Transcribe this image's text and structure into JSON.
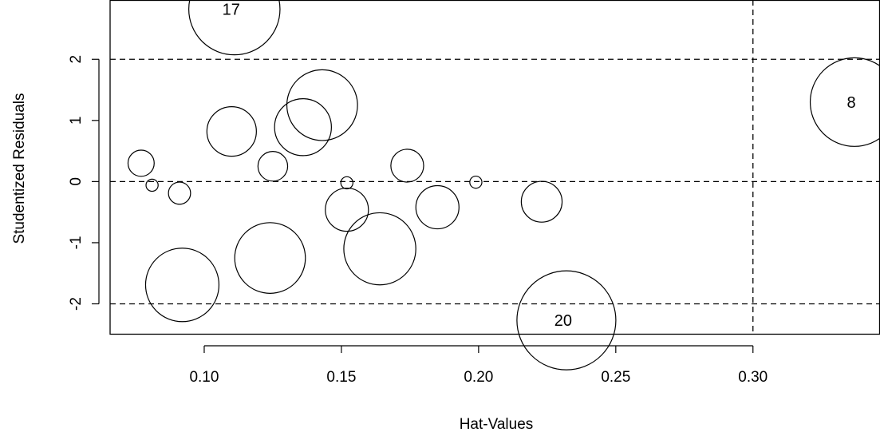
{
  "chart_data": {
    "type": "scatter",
    "title": "",
    "xlabel": "Hat-Values",
    "ylabel": "Studentized Residuals",
    "xlim": [
      0.0657,
      0.3463
    ],
    "ylim": [
      -2.49,
      2.97
    ],
    "x_ticks": [
      0.1,
      0.15,
      0.2,
      0.25,
      0.3
    ],
    "x_tick_labels": [
      "0.10",
      "0.15",
      "0.20",
      "0.25",
      "0.30"
    ],
    "y_ticks": [
      -2,
      -1,
      0,
      1,
      2
    ],
    "y_tick_labels": [
      "-2",
      "-1",
      "0",
      "1",
      "2"
    ],
    "reference_lines": {
      "horizontal": [
        -2,
        0,
        2
      ],
      "vertical": [
        0.3
      ],
      "style": "dashed"
    },
    "bubble_size_meaning": "Cook's distance (relative)",
    "points": [
      {
        "x": 0.111,
        "y": 2.82,
        "size": 0.85,
        "label": "17"
      },
      {
        "x": 0.337,
        "y": 1.3,
        "size": 0.8,
        "label": "8"
      },
      {
        "x": 0.232,
        "y": -2.27,
        "size": 1.0,
        "label": "20"
      },
      {
        "x": 0.143,
        "y": 1.25,
        "size": 0.51
      },
      {
        "x": 0.11,
        "y": 0.82,
        "size": 0.25
      },
      {
        "x": 0.136,
        "y": 0.89,
        "size": 0.33
      },
      {
        "x": 0.077,
        "y": 0.3,
        "size": 0.07
      },
      {
        "x": 0.125,
        "y": 0.25,
        "size": 0.09
      },
      {
        "x": 0.174,
        "y": 0.26,
        "size": 0.11
      },
      {
        "x": 0.091,
        "y": -0.19,
        "size": 0.05
      },
      {
        "x": 0.081,
        "y": -0.06,
        "size": 0.015
      },
      {
        "x": 0.152,
        "y": -0.02,
        "size": 0.015
      },
      {
        "x": 0.199,
        "y": -0.01,
        "size": 0.015
      },
      {
        "x": 0.152,
        "y": -0.46,
        "size": 0.19
      },
      {
        "x": 0.185,
        "y": -0.42,
        "size": 0.19
      },
      {
        "x": 0.223,
        "y": -0.33,
        "size": 0.17
      },
      {
        "x": 0.164,
        "y": -1.1,
        "size": 0.53
      },
      {
        "x": 0.124,
        "y": -1.25,
        "size": 0.51
      },
      {
        "x": 0.092,
        "y": -1.69,
        "size": 0.55
      }
    ]
  }
}
